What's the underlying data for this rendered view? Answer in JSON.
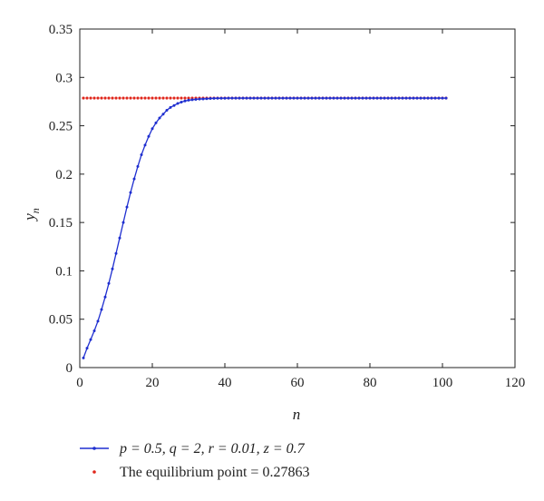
{
  "chart_data": {
    "type": "line",
    "xlabel": "n",
    "ylabel": "y",
    "ylabel_subscript": "n",
    "xlim": [
      0,
      120
    ],
    "ylim": [
      0,
      0.35
    ],
    "xticks": [
      0,
      20,
      40,
      60,
      80,
      100,
      120
    ],
    "yticks": [
      0,
      0.05,
      0.1,
      0.15,
      0.2,
      0.25,
      0.3,
      0.35
    ],
    "xtick_labels": [
      "0",
      "20",
      "40",
      "60",
      "80",
      "100",
      "120"
    ],
    "ytick_labels": [
      "0",
      "0.05",
      "0.1",
      "0.15",
      "0.2",
      "0.25",
      "0.3",
      "0.35"
    ],
    "grid": false,
    "legend_placement": "below",
    "series": [
      {
        "name": "p = 0.5, q = 2, r = 0.01, z = 0.7",
        "style": "line-with-dots",
        "color": "#1f2fd0",
        "x_start": 1,
        "x_end": 101,
        "values": [
          0.01,
          0.02,
          0.029,
          0.038,
          0.048,
          0.06,
          0.073,
          0.087,
          0.102,
          0.118,
          0.134,
          0.15,
          0.166,
          0.181,
          0.195,
          0.208,
          0.22,
          0.23,
          0.239,
          0.247,
          0.253,
          0.258,
          0.262,
          0.266,
          0.269,
          0.271,
          0.273,
          0.2745,
          0.2756,
          0.2764,
          0.2769,
          0.2773,
          0.2776,
          0.2778,
          0.278,
          0.2782,
          0.2783,
          0.2784,
          0.27845,
          0.2785,
          0.27855,
          0.27858,
          0.2786
        ]
      },
      {
        "name": "The equilibrium point = 0.27863",
        "style": "dots",
        "color": "#e0261b",
        "x_start": 1,
        "x_end": 101,
        "value": 0.27863
      }
    ]
  }
}
